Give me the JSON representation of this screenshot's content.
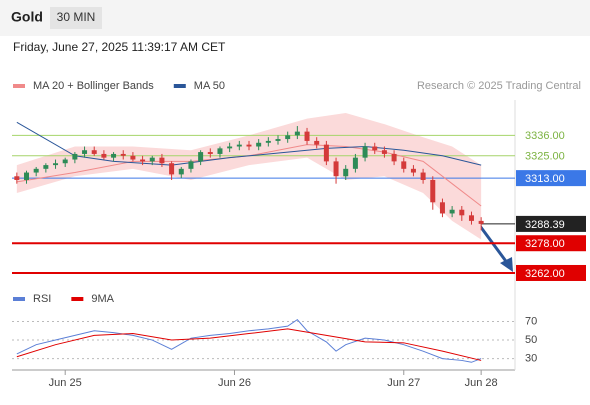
{
  "header": {
    "instrument": "Gold",
    "timeframe": "30 MIN",
    "timestamp": "Friday, June 27, 2025 11:39:17 AM CET",
    "source": "Research © 2025 Trading Central"
  },
  "chart_data": [
    {
      "type": "candlestick",
      "x": [
        0,
        1,
        2,
        3,
        4,
        5,
        6,
        7,
        8,
        9,
        10,
        11,
        12,
        13,
        14,
        15,
        16,
        17,
        18,
        19,
        20,
        21,
        22,
        23,
        24,
        25,
        26,
        27,
        28,
        29,
        30,
        31,
        32,
        33,
        34,
        35,
        36,
        37,
        38,
        39,
        40,
        41,
        42,
        43,
        44,
        45,
        46,
        47,
        48
      ],
      "open": [
        3314,
        3312,
        3316,
        3318,
        3320,
        3321,
        3323,
        3326,
        3328,
        3326,
        3324,
        3326,
        3325,
        3323,
        3322,
        3324,
        3321,
        3315,
        3318,
        3322,
        3327,
        3326,
        3329,
        3330,
        3331,
        3330,
        3332,
        3333,
        3334,
        3336,
        3338,
        3333,
        3331,
        3322,
        3314,
        3318,
        3324,
        3330,
        3328,
        3326,
        3322,
        3318,
        3316,
        3312,
        3300,
        3294,
        3296,
        3293,
        3290
      ],
      "high": [
        3316,
        3317,
        3319,
        3321,
        3323,
        3324,
        3327,
        3330,
        3330,
        3328,
        3327,
        3328,
        3327,
        3325,
        3325,
        3326,
        3322,
        3319,
        3323,
        3328,
        3329,
        3330,
        3332,
        3333,
        3333,
        3334,
        3335,
        3336,
        3338,
        3341,
        3340,
        3335,
        3333,
        3324,
        3320,
        3326,
        3332,
        3332,
        3330,
        3328,
        3324,
        3320,
        3318,
        3314,
        3302,
        3298,
        3298,
        3295,
        3292
      ],
      "low": [
        3310,
        3310,
        3314,
        3316,
        3318,
        3319,
        3321,
        3324,
        3325,
        3323,
        3322,
        3323,
        3322,
        3320,
        3320,
        3319,
        3312,
        3313,
        3316,
        3320,
        3324,
        3324,
        3327,
        3328,
        3328,
        3328,
        3330,
        3331,
        3332,
        3334,
        3331,
        3329,
        3320,
        3310,
        3312,
        3316,
        3322,
        3326,
        3324,
        3320,
        3316,
        3314,
        3310,
        3296,
        3292,
        3292,
        3290,
        3288,
        3285
      ],
      "close": [
        3312,
        3316,
        3318,
        3320,
        3321,
        3323,
        3326,
        3328,
        3326,
        3324,
        3326,
        3325,
        3323,
        3322,
        3324,
        3321,
        3315,
        3318,
        3322,
        3327,
        3326,
        3329,
        3330,
        3331,
        3330,
        3332,
        3333,
        3334,
        3336,
        3338,
        3333,
        3331,
        3322,
        3314,
        3318,
        3324,
        3330,
        3328,
        3326,
        3322,
        3318,
        3316,
        3312,
        3300,
        3294,
        3296,
        3293,
        3290,
        3288.39
      ],
      "up_color": "#2e8b57",
      "down_color": "#d43a3a",
      "series": [
        {
          "name": "MA 20 + Bollinger Bands",
          "color": "#f08a8a",
          "band_color": "#fbdada",
          "x": [
            0,
            6,
            12,
            18,
            24,
            30,
            34,
            38,
            42,
            45,
            48
          ],
          "values": [
            3311,
            3316,
            3322,
            3322,
            3325,
            3331,
            3330,
            3327,
            3322,
            3310,
            3298
          ],
          "upper": [
            3320,
            3330,
            3330,
            3328,
            3336,
            3345,
            3348,
            3342,
            3335,
            3330,
            3320
          ],
          "lower": [
            3305,
            3314,
            3318,
            3312,
            3320,
            3324,
            3312,
            3314,
            3305,
            3290,
            3280
          ]
        },
        {
          "name": "MA 50",
          "color": "#2a5699",
          "x": [
            0,
            6,
            10,
            16,
            22,
            28,
            32,
            36,
            40,
            44,
            48
          ],
          "values": [
            3343,
            3325,
            3322,
            3320,
            3324,
            3327,
            3329,
            3330,
            3328,
            3325,
            3320
          ]
        }
      ],
      "levels": [
        {
          "value": 3336,
          "label": "3336.00",
          "color": "#a5d46a",
          "boxed": false
        },
        {
          "value": 3325,
          "label": "3325.00",
          "color": "#a5d46a",
          "boxed": false
        },
        {
          "value": 3313,
          "label": "3313.00",
          "color": "#3b78e7",
          "boxed": true
        },
        {
          "value": 3288.39,
          "label": "3288.39",
          "color": "#222222",
          "boxed": true
        },
        {
          "value": 3278,
          "label": "3278.00",
          "color": "#e00000",
          "boxed": true
        },
        {
          "value": 3262,
          "label": "3262.00",
          "color": "#e00000",
          "boxed": true
        }
      ],
      "xlim": [
        -0.5,
        51.5
      ],
      "ylim": [
        3255,
        3355
      ],
      "xticks": [
        {
          "value": 5,
          "label": "Jun 25"
        },
        {
          "value": 22.5,
          "label": "Jun 26"
        },
        {
          "value": 40,
          "label": "Jun 27"
        },
        {
          "value": 48,
          "label": "Jun 28"
        }
      ]
    },
    {
      "type": "line",
      "series": [
        {
          "name": "RSI",
          "color": "#5b7fd6",
          "x": [
            0,
            2,
            4,
            6,
            8,
            10,
            12,
            14,
            16,
            18,
            20,
            22,
            24,
            26,
            28,
            29,
            30,
            32,
            33,
            34,
            36,
            38,
            40,
            42,
            44,
            46,
            47,
            48
          ],
          "values": [
            35,
            45,
            50,
            55,
            60,
            58,
            55,
            50,
            40,
            52,
            55,
            57,
            60,
            62,
            65,
            72,
            60,
            48,
            38,
            45,
            52,
            50,
            45,
            38,
            30,
            28,
            26,
            30
          ]
        },
        {
          "name": "9MA",
          "color": "#e00000",
          "x": [
            0,
            4,
            8,
            12,
            16,
            20,
            24,
            28,
            32,
            36,
            40,
            44,
            48
          ],
          "values": [
            32,
            45,
            55,
            57,
            50,
            52,
            57,
            62,
            55,
            48,
            47,
            38,
            28
          ]
        }
      ],
      "xlim": [
        -0.5,
        51.5
      ],
      "ylim": [
        22,
        77
      ],
      "yticks": [
        30,
        50,
        70
      ]
    }
  ]
}
